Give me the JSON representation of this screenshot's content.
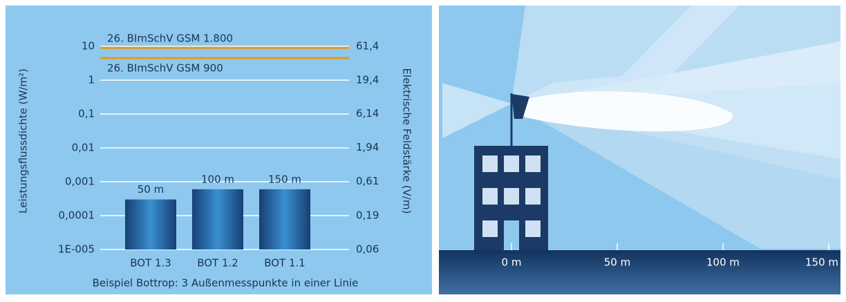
{
  "chart_data": {
    "type": "bar",
    "y_label": "Leistungsflussdichte (W/m²)",
    "y2_label": "Elektrische Feldstärke (V/m)",
    "caption": "Beispiel Bottrop: 3 Außenmesspunkte in einer Linie",
    "categories": [
      "BOT 1.3",
      "BOT 1.2",
      "BOT 1.1"
    ],
    "values": [
      0.0003,
      0.0006,
      0.0006
    ],
    "bar_labels": [
      "50 m",
      "100 m",
      "150 m"
    ],
    "log_scale": true,
    "grid": true,
    "color": "#1f5c9c",
    "ylim": [
      1e-05,
      10
    ],
    "yticks": [
      10,
      1,
      {
        "value": 0.1,
        "label": "0,1"
      },
      {
        "value": 0.01,
        "label": "0,01"
      },
      {
        "value": 0.001,
        "label": "0,001"
      },
      {
        "value": 0.0001,
        "label": "0,0001"
      },
      {
        "value": 1e-05,
        "label": "1E-005"
      }
    ],
    "y2lim": [
      0.06,
      61.4
    ],
    "y2ticks": [
      {
        "value": 61.4,
        "label": "61,4"
      },
      {
        "value": 19.4,
        "label": "19,4"
      },
      {
        "value": 6.14,
        "label": "6,14"
      },
      {
        "value": 1.94,
        "label": "1,94"
      },
      {
        "value": 0.61,
        "label": "0,61"
      },
      {
        "value": 0.19,
        "label": "0,19"
      },
      {
        "value": 0.06,
        "label": "0,06"
      }
    ],
    "reference_lines": [
      {
        "label": "26. BImSchV GSM 1.800",
        "value": 9,
        "color": "#e39b1f"
      },
      {
        "label": "26. BImSchV GSM 900",
        "value": 4.5,
        "color": "#e39b1f"
      }
    ]
  },
  "illustration": {
    "distance_labels": [
      "0 m",
      "50 m",
      "100 m",
      "150 m"
    ]
  }
}
